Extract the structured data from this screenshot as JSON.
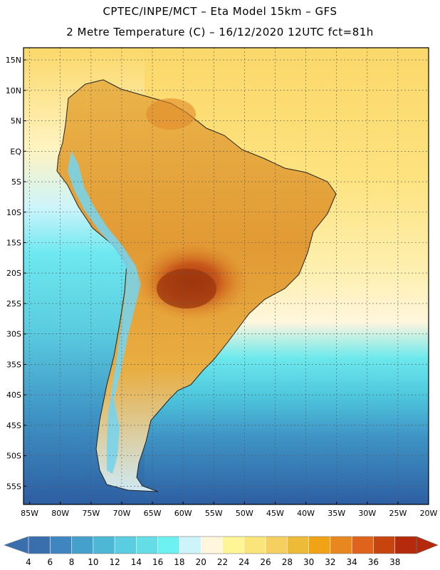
{
  "title": {
    "line1": "CPTEC/INPE/MCT –  Eta Model 15km – GFS",
    "line2": "2 Metre Temperature (C) – 16/12/2020 12UTC fct=81h"
  },
  "axes": {
    "lat_labels": [
      "15N",
      "10N",
      "5N",
      "EQ",
      "5S",
      "10S",
      "15S",
      "20S",
      "25S",
      "30S",
      "35S",
      "40S",
      "45S",
      "50S",
      "55S"
    ],
    "lat_values": [
      15,
      10,
      5,
      0,
      -5,
      -10,
      -15,
      -20,
      -25,
      -30,
      -35,
      -40,
      -45,
      -50,
      -55
    ],
    "lon_labels": [
      "85W",
      "80W",
      "75W",
      "70W",
      "65W",
      "60W",
      "55W",
      "50W",
      "45W",
      "40W",
      "35W",
      "30W",
      "25W",
      "20W"
    ],
    "lon_values": [
      -85,
      -80,
      -75,
      -70,
      -65,
      -60,
      -55,
      -50,
      -45,
      -40,
      -35,
      -30,
      -25,
      -20
    ],
    "lat_range": [
      -58,
      17
    ],
    "lon_range": [
      -86,
      -20
    ]
  },
  "colorbar": {
    "labels": [
      "4",
      "6",
      "8",
      "10",
      "12",
      "14",
      "16",
      "18",
      "20",
      "22",
      "24",
      "26",
      "28",
      "30",
      "32",
      "34",
      "36",
      "38"
    ],
    "colors": [
      "#3a6fae",
      "#3f86c0",
      "#46a0cc",
      "#4db8d6",
      "#5acde0",
      "#64dde6",
      "#6ef0f0",
      "#cdf4fb",
      "#fff6dd",
      "#fff496",
      "#fae57a",
      "#f5d060",
      "#eebb38",
      "#f0a315",
      "#e8871e",
      "#dd641a",
      "#c8440e",
      "#b52a0c"
    ]
  },
  "legend_colors": {
    "ocean_cold": "#2f62a6",
    "ocean_mid": "#4fc1dc",
    "ocean_warm": "#fbe68a",
    "land_hot": "#c24d13",
    "land_warm": "#eeb23a",
    "andes_cold": "#7ad4ec"
  }
}
